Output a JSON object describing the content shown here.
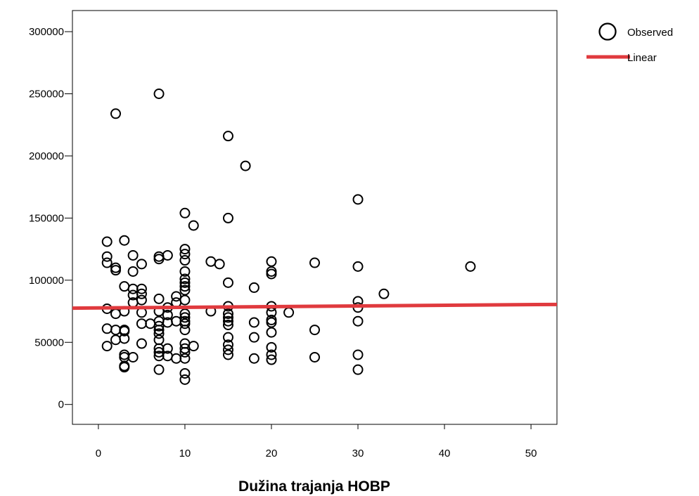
{
  "chart_data": {
    "type": "scatter",
    "title": "",
    "xlabel": "Dužina trajanja HOBP",
    "ylabel": "",
    "xlim": [
      -3,
      53
    ],
    "ylim": [
      -16000,
      317000
    ],
    "x_ticks": [
      0,
      10,
      20,
      30,
      40,
      50
    ],
    "x_tick_labels": [
      "0",
      "10",
      "20",
      "30",
      "40",
      "50"
    ],
    "y_ticks": [
      0,
      50000,
      100000,
      150000,
      200000,
      250000,
      300000
    ],
    "y_tick_labels": [
      "0",
      "50000",
      "100000",
      "150000",
      "200000",
      "250000",
      "300000"
    ],
    "grid": false,
    "legend_position": "top-right",
    "legend": {
      "observed": "Observed",
      "linear": "Linear"
    },
    "colors": {
      "fit_line": "#e03a3e",
      "marker": "#000000"
    },
    "series": [
      {
        "name": "Observed",
        "type": "scatter",
        "points": [
          [
            1,
            131000
          ],
          [
            1,
            119000
          ],
          [
            1,
            114000
          ],
          [
            1,
            77000
          ],
          [
            1,
            61000
          ],
          [
            1,
            47000
          ],
          [
            2,
            234000
          ],
          [
            2,
            110000
          ],
          [
            2,
            108000
          ],
          [
            2,
            73000
          ],
          [
            2,
            60000
          ],
          [
            2,
            52000
          ],
          [
            3,
            132000
          ],
          [
            3,
            95000
          ],
          [
            3,
            75000
          ],
          [
            3,
            60000
          ],
          [
            3,
            59000
          ],
          [
            3,
            53000
          ],
          [
            3,
            40000
          ],
          [
            3,
            38000
          ],
          [
            3,
            31000
          ],
          [
            3,
            30000
          ],
          [
            4,
            120000
          ],
          [
            4,
            107000
          ],
          [
            4,
            93000
          ],
          [
            4,
            88000
          ],
          [
            4,
            82000
          ],
          [
            4,
            38000
          ],
          [
            5,
            113000
          ],
          [
            5,
            93000
          ],
          [
            5,
            89000
          ],
          [
            5,
            84000
          ],
          [
            5,
            74000
          ],
          [
            5,
            65000
          ],
          [
            5,
            49000
          ],
          [
            6,
            65000
          ],
          [
            7,
            250000
          ],
          [
            7,
            119000
          ],
          [
            7,
            117000
          ],
          [
            7,
            85000
          ],
          [
            7,
            75000
          ],
          [
            7,
            67000
          ],
          [
            7,
            63000
          ],
          [
            7,
            60000
          ],
          [
            7,
            57000
          ],
          [
            7,
            52000
          ],
          [
            7,
            45000
          ],
          [
            7,
            42000
          ],
          [
            7,
            39000
          ],
          [
            7,
            28000
          ],
          [
            8,
            120000
          ],
          [
            8,
            78000
          ],
          [
            8,
            72000
          ],
          [
            8,
            66000
          ],
          [
            8,
            45000
          ],
          [
            8,
            39000
          ],
          [
            9,
            87000
          ],
          [
            9,
            82000
          ],
          [
            9,
            67000
          ],
          [
            9,
            37000
          ],
          [
            10,
            154000
          ],
          [
            10,
            125000
          ],
          [
            10,
            121000
          ],
          [
            10,
            116000
          ],
          [
            10,
            107000
          ],
          [
            10,
            101000
          ],
          [
            10,
            98000
          ],
          [
            10,
            95000
          ],
          [
            10,
            92000
          ],
          [
            10,
            84000
          ],
          [
            10,
            73000
          ],
          [
            10,
            70000
          ],
          [
            10,
            67000
          ],
          [
            10,
            65000
          ],
          [
            10,
            60000
          ],
          [
            10,
            49000
          ],
          [
            10,
            45000
          ],
          [
            10,
            42000
          ],
          [
            10,
            37000
          ],
          [
            10,
            25000
          ],
          [
            10,
            20000
          ],
          [
            11,
            144000
          ],
          [
            11,
            47000
          ],
          [
            13,
            115000
          ],
          [
            13,
            75000
          ],
          [
            14,
            113000
          ],
          [
            15,
            216000
          ],
          [
            15,
            150000
          ],
          [
            15,
            98000
          ],
          [
            15,
            79000
          ],
          [
            15,
            73000
          ],
          [
            15,
            70000
          ],
          [
            15,
            67000
          ],
          [
            15,
            64000
          ],
          [
            15,
            54000
          ],
          [
            15,
            48000
          ],
          [
            15,
            44000
          ],
          [
            15,
            40000
          ],
          [
            17,
            192000
          ],
          [
            18,
            94000
          ],
          [
            18,
            66000
          ],
          [
            18,
            54000
          ],
          [
            18,
            37000
          ],
          [
            20,
            115000
          ],
          [
            20,
            107000
          ],
          [
            20,
            105000
          ],
          [
            20,
            79000
          ],
          [
            20,
            74000
          ],
          [
            20,
            68000
          ],
          [
            20,
            66000
          ],
          [
            20,
            58000
          ],
          [
            20,
            46000
          ],
          [
            20,
            40000
          ],
          [
            20,
            36000
          ],
          [
            22,
            74000
          ],
          [
            25,
            114000
          ],
          [
            25,
            60000
          ],
          [
            25,
            38000
          ],
          [
            30,
            165000
          ],
          [
            30,
            111000
          ],
          [
            30,
            83000
          ],
          [
            30,
            78000
          ],
          [
            30,
            67000
          ],
          [
            30,
            40000
          ],
          [
            30,
            28000
          ],
          [
            33,
            89000
          ],
          [
            43,
            111000
          ]
        ]
      },
      {
        "name": "Linear",
        "type": "line",
        "x": [
          -3,
          53
        ],
        "y": [
          77500,
          80500
        ]
      }
    ]
  }
}
